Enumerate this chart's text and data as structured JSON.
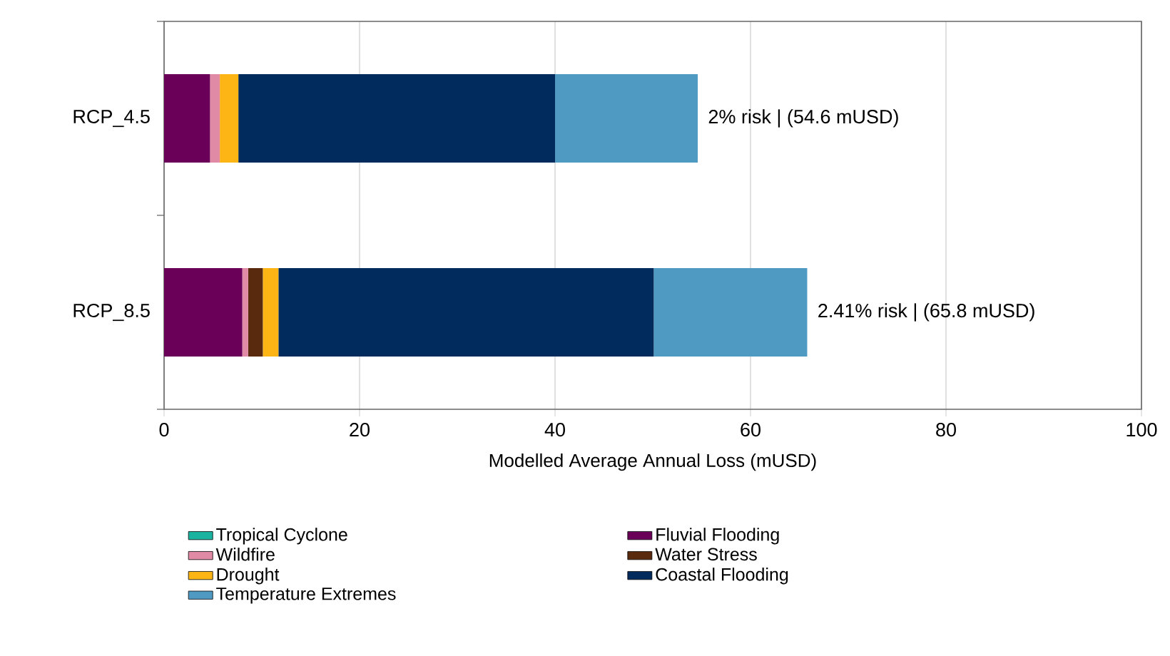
{
  "chart_data": {
    "type": "bar",
    "orientation": "horizontal",
    "stacked": true,
    "categories": [
      "RCP_4.5",
      "RCP_8.5"
    ],
    "xlabel": "Modelled Average Annual Loss (mUSD)",
    "xlim": [
      0,
      100
    ],
    "xticks": [
      0,
      20,
      40,
      60,
      80,
      100
    ],
    "grid": "x",
    "legend": "bottom",
    "series": [
      {
        "name": "Tropical Cyclone",
        "color": "#1ab39f",
        "values": [
          0,
          0
        ]
      },
      {
        "name": "Fluvial Flooding",
        "color": "#6b0058",
        "values": [
          4.7,
          8.0
        ]
      },
      {
        "name": "Wildfire",
        "color": "#e08aa5",
        "values": [
          1.0,
          0.6
        ]
      },
      {
        "name": "Water Stress",
        "color": "#5a2a0e",
        "values": [
          0,
          1.5
        ]
      },
      {
        "name": "Drought",
        "color": "#fdb515",
        "values": [
          1.9,
          1.6
        ]
      },
      {
        "name": "Coastal Flooding",
        "color": "#002b5c",
        "values": [
          32.4,
          38.4
        ]
      },
      {
        "name": "Temperature Extremes",
        "color": "#4f9ac3",
        "values": [
          14.6,
          15.7
        ]
      }
    ],
    "annotations": [
      {
        "text": "2% risk | (54.6 mUSD)",
        "x": 54.6,
        "y": "RCP_4.5"
      },
      {
        "text": "2.41% risk | (65.8 mUSD)",
        "x": 65.8,
        "y": "RCP_8.5"
      }
    ]
  }
}
